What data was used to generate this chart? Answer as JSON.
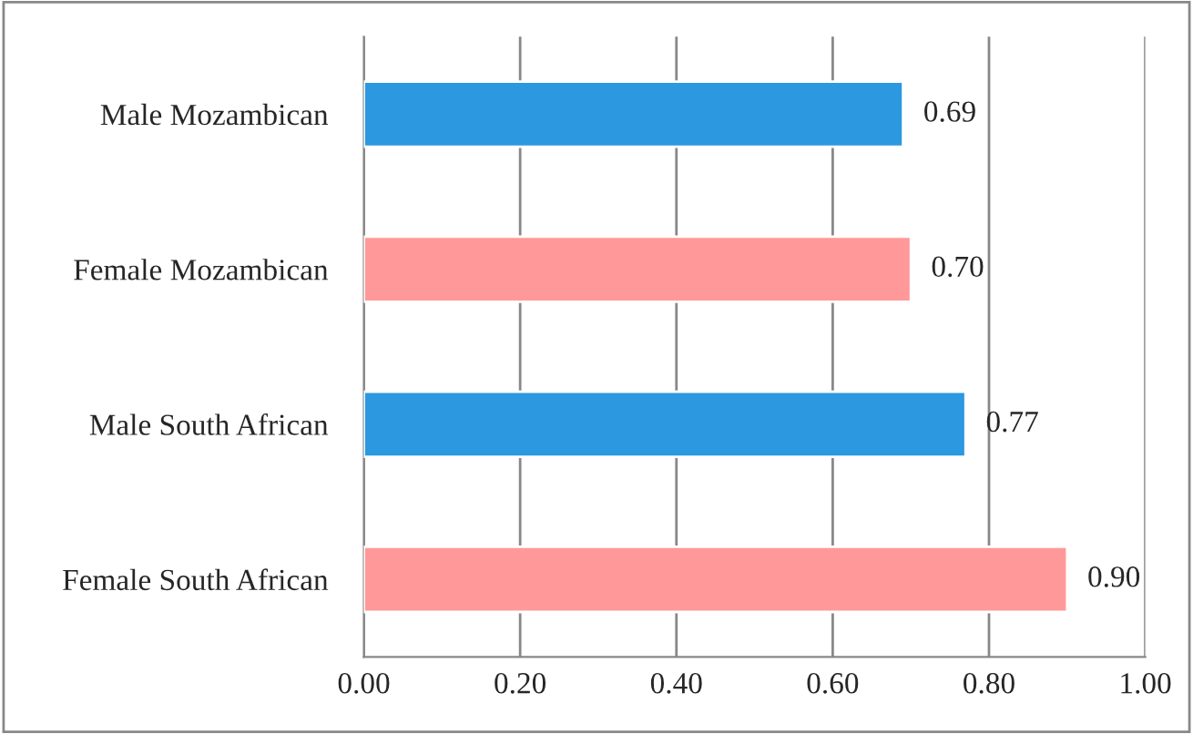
{
  "chart_data": {
    "type": "bar",
    "orientation": "horizontal",
    "categories": [
      "Male Mozambican",
      "Female Mozambican",
      "Male South African",
      "Female South African"
    ],
    "values": [
      0.69,
      0.7,
      0.77,
      0.9
    ],
    "colors": [
      "#2b98e0",
      "#ff9999",
      "#2b98e0",
      "#ff9999"
    ],
    "value_labels": [
      "0.69",
      "0.70",
      "0.77",
      "0.90"
    ],
    "xlim": [
      0,
      1
    ],
    "xticks": [
      {
        "value": 0,
        "label": "0.00"
      },
      {
        "value": 0.2,
        "label": "0.20"
      },
      {
        "value": 0.4,
        "label": "0.40"
      },
      {
        "value": 0.6,
        "label": "0.60"
      },
      {
        "value": 0.8,
        "label": "0.80"
      },
      {
        "value": 1,
        "label": "1.00"
      }
    ],
    "grid": "x",
    "legend": false
  }
}
